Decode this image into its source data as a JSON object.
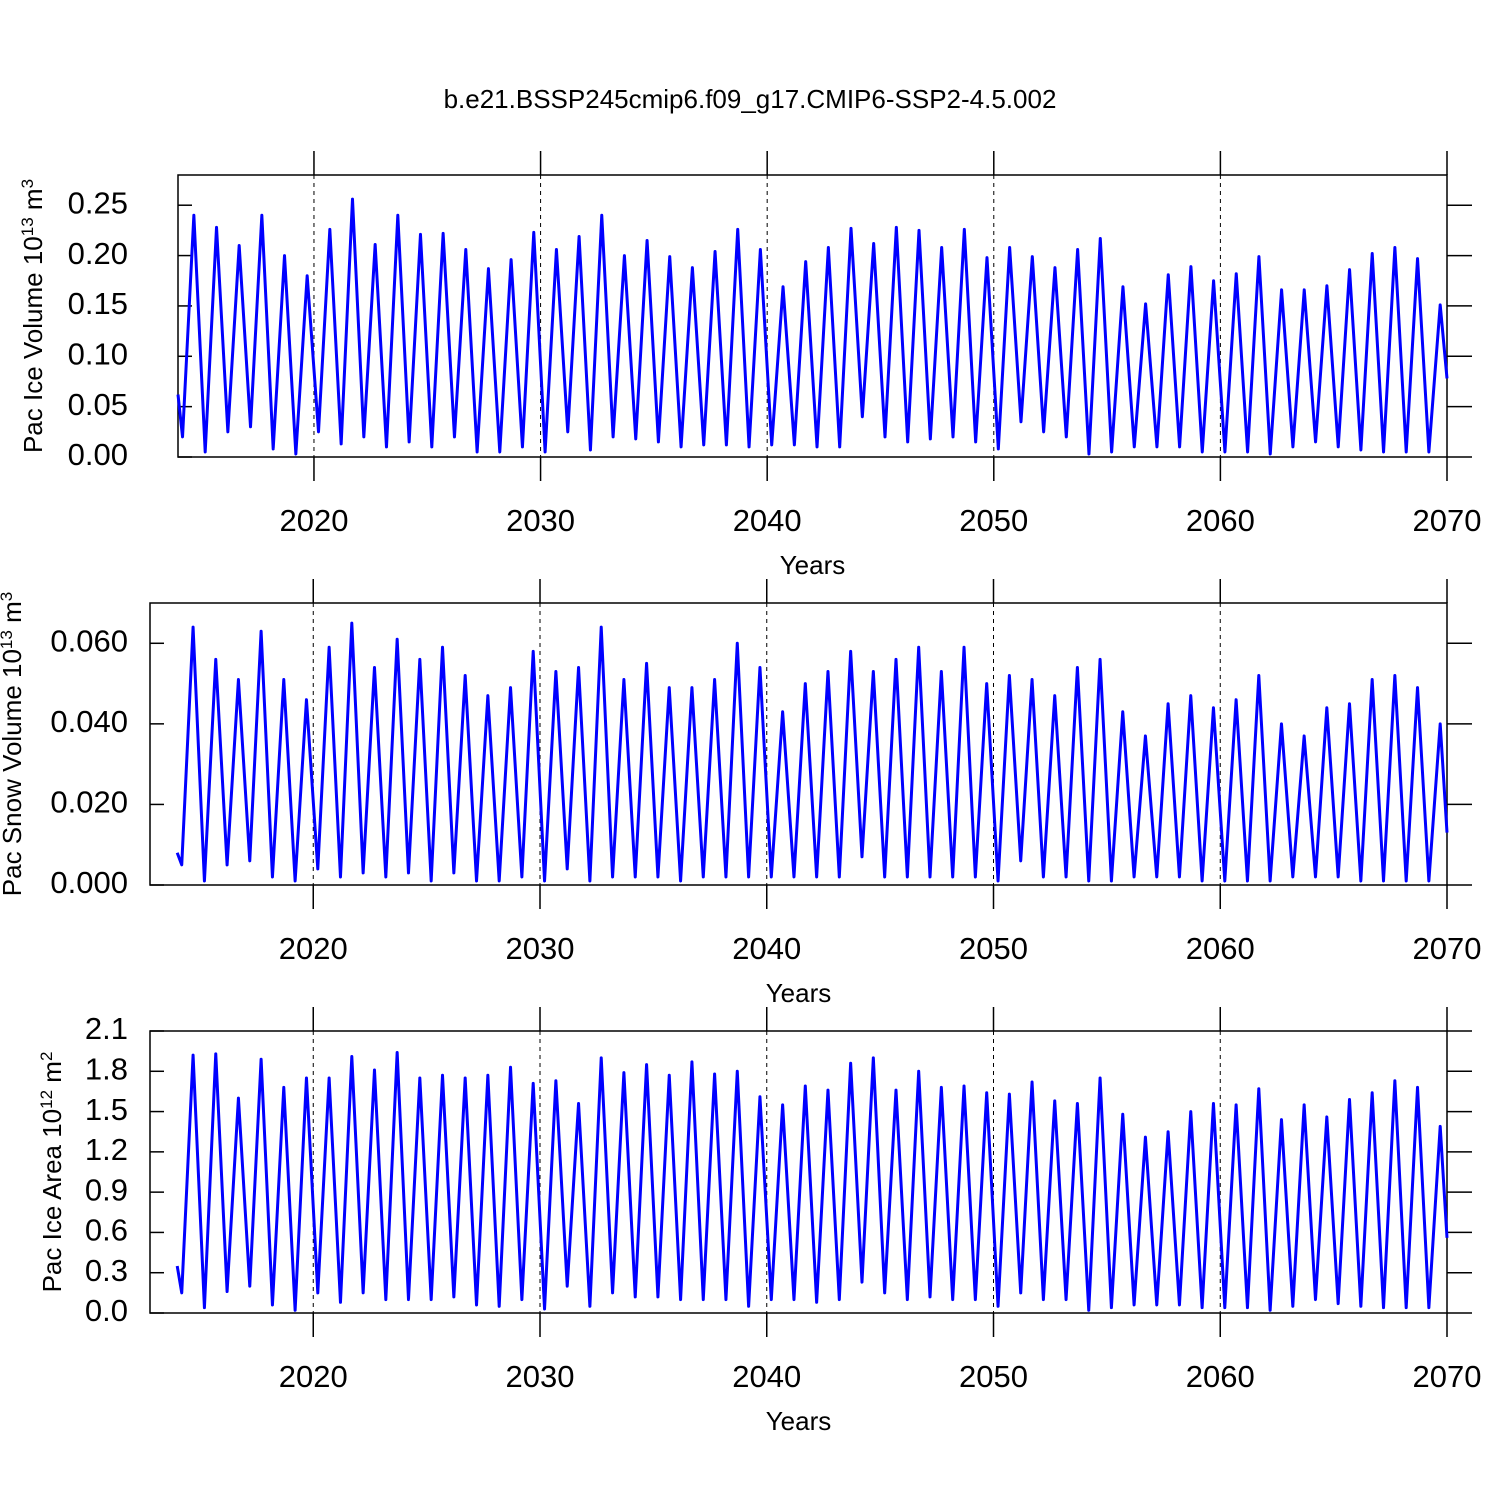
{
  "chart_data": [
    {
      "type": "line",
      "title": "b.e21.BSSP245cmip6.f09_g17.CMIP6-SSP2-4.5.002",
      "xlabel": "Years",
      "ylabel": [
        "Pac Ice Volume 10",
        "13",
        " m",
        "3"
      ],
      "xlim": [
        2014,
        2070
      ],
      "ylim": [
        0,
        0.28
      ],
      "grid": true,
      "xticks": [
        2020,
        2030,
        2040,
        2050,
        2060,
        2070
      ],
      "yticks": [
        {
          "value": 0,
          "label": "0.00"
        },
        {
          "value": 0.05,
          "label": "0.05"
        },
        {
          "value": 0.1,
          "label": "0.10"
        },
        {
          "value": 0.15,
          "label": "0.15"
        },
        {
          "value": 0.2,
          "label": "0.20"
        },
        {
          "value": 0.25,
          "label": "0.25"
        }
      ],
      "x": [
        2014,
        2014.2,
        2014.7,
        2015.2,
        2015.7,
        2016.2,
        2016.7,
        2017.2,
        2017.7,
        2018.2,
        2018.7,
        2019.2,
        2019.7,
        2020.2,
        2020.7,
        2021.2,
        2021.7,
        2022.2,
        2022.7,
        2023.2,
        2023.7,
        2024.2,
        2024.7,
        2025.2,
        2025.7,
        2026.2,
        2026.7,
        2027.2,
        2027.7,
        2028.2,
        2028.7,
        2029.2,
        2029.7,
        2030.2,
        2030.7,
        2031.2,
        2031.7,
        2032.2,
        2032.7,
        2033.2,
        2033.7,
        2034.2,
        2034.7,
        2035.2,
        2035.7,
        2036.2,
        2036.7,
        2037.2,
        2037.7,
        2038.2,
        2038.7,
        2039.2,
        2039.7,
        2040.2,
        2040.7,
        2041.2,
        2041.7,
        2042.2,
        2042.7,
        2043.2,
        2043.7,
        2044.2,
        2044.7,
        2045.2,
        2045.7,
        2046.2,
        2046.7,
        2047.2,
        2047.7,
        2048.2,
        2048.7,
        2049.2,
        2049.7,
        2050.2,
        2050.7,
        2051.2,
        2051.7,
        2052.2,
        2052.7,
        2053.2,
        2053.7,
        2054.2,
        2054.7,
        2055.2,
        2055.7,
        2056.2,
        2056.7,
        2057.2,
        2057.7,
        2058.2,
        2058.7,
        2059.2,
        2059.7,
        2060.2,
        2060.7,
        2061.2,
        2061.7,
        2062.2,
        2062.7,
        2063.2,
        2063.7,
        2064.2,
        2064.7,
        2065.2,
        2065.7,
        2066.2,
        2066.7,
        2067.2,
        2067.7,
        2068.2,
        2068.7,
        2069.2,
        2069.7,
        2070
      ],
      "series": [
        {
          "color": "#0000ff",
          "values": [
            0.062,
            0.02,
            0.24,
            0.005,
            0.228,
            0.025,
            0.21,
            0.03,
            0.24,
            0.008,
            0.2,
            0.003,
            0.18,
            0.025,
            0.226,
            0.013,
            0.256,
            0.02,
            0.211,
            0.01,
            0.24,
            0.015,
            0.221,
            0.01,
            0.222,
            0.02,
            0.206,
            0.005,
            0.187,
            0.005,
            0.196,
            0.01,
            0.223,
            0.005,
            0.206,
            0.025,
            0.219,
            0.007,
            0.24,
            0.02,
            0.2,
            0.018,
            0.215,
            0.015,
            0.199,
            0.01,
            0.188,
            0.012,
            0.204,
            0.012,
            0.226,
            0.01,
            0.206,
            0.012,
            0.169,
            0.012,
            0.194,
            0.01,
            0.208,
            0.01,
            0.227,
            0.04,
            0.212,
            0.02,
            0.228,
            0.015,
            0.225,
            0.018,
            0.208,
            0.02,
            0.226,
            0.015,
            0.198,
            0.008,
            0.208,
            0.035,
            0.199,
            0.025,
            0.188,
            0.02,
            0.206,
            0.003,
            0.217,
            0.005,
            0.169,
            0.01,
            0.152,
            0.01,
            0.181,
            0.01,
            0.189,
            0.005,
            0.175,
            0.005,
            0.182,
            0.005,
            0.199,
            0.003,
            0.166,
            0.01,
            0.166,
            0.015,
            0.17,
            0.01,
            0.186,
            0.007,
            0.202,
            0.005,
            0.208,
            0.005,
            0.197,
            0.005,
            0.151,
            0.078
          ]
        }
      ]
    },
    {
      "type": "line",
      "xlabel": "Years",
      "ylabel": [
        "Pac Snow Volume 10",
        "13",
        " m",
        "3"
      ],
      "xlim": [
        2012.8,
        2070
      ],
      "ylim": [
        0,
        0.07
      ],
      "grid": true,
      "xticks": [
        2020,
        2030,
        2040,
        2050,
        2060,
        2070
      ],
      "yticks": [
        {
          "value": 0,
          "label": "0.000"
        },
        {
          "value": 0.02,
          "label": "0.020"
        },
        {
          "value": 0.04,
          "label": "0.040"
        },
        {
          "value": 0.06,
          "label": "0.060"
        }
      ],
      "x": [
        2014,
        2014.2,
        2014.7,
        2015.2,
        2015.7,
        2016.2,
        2016.7,
        2017.2,
        2017.7,
        2018.2,
        2018.7,
        2019.2,
        2019.7,
        2020.2,
        2020.7,
        2021.2,
        2021.7,
        2022.2,
        2022.7,
        2023.2,
        2023.7,
        2024.2,
        2024.7,
        2025.2,
        2025.7,
        2026.2,
        2026.7,
        2027.2,
        2027.7,
        2028.2,
        2028.7,
        2029.2,
        2029.7,
        2030.2,
        2030.7,
        2031.2,
        2031.7,
        2032.2,
        2032.7,
        2033.2,
        2033.7,
        2034.2,
        2034.7,
        2035.2,
        2035.7,
        2036.2,
        2036.7,
        2037.2,
        2037.7,
        2038.2,
        2038.7,
        2039.2,
        2039.7,
        2040.2,
        2040.7,
        2041.2,
        2041.7,
        2042.2,
        2042.7,
        2043.2,
        2043.7,
        2044.2,
        2044.7,
        2045.2,
        2045.7,
        2046.2,
        2046.7,
        2047.2,
        2047.7,
        2048.2,
        2048.7,
        2049.2,
        2049.7,
        2050.2,
        2050.7,
        2051.2,
        2051.7,
        2052.2,
        2052.7,
        2053.2,
        2053.7,
        2054.2,
        2054.7,
        2055.2,
        2055.7,
        2056.2,
        2056.7,
        2057.2,
        2057.7,
        2058.2,
        2058.7,
        2059.2,
        2059.7,
        2060.2,
        2060.7,
        2061.2,
        2061.7,
        2062.2,
        2062.7,
        2063.2,
        2063.7,
        2064.2,
        2064.7,
        2065.2,
        2065.7,
        2066.2,
        2066.7,
        2067.2,
        2067.7,
        2068.2,
        2068.7,
        2069.2,
        2069.7,
        2070
      ],
      "series": [
        {
          "color": "#0000ff",
          "values": [
            0.008,
            0.005,
            0.064,
            0.001,
            0.056,
            0.005,
            0.051,
            0.006,
            0.063,
            0.002,
            0.051,
            0.001,
            0.046,
            0.004,
            0.059,
            0.002,
            0.065,
            0.003,
            0.054,
            0.002,
            0.061,
            0.003,
            0.056,
            0.001,
            0.059,
            0.003,
            0.052,
            0.001,
            0.047,
            0.001,
            0.049,
            0.002,
            0.058,
            0.001,
            0.053,
            0.004,
            0.054,
            0.001,
            0.064,
            0.002,
            0.051,
            0.002,
            0.055,
            0.002,
            0.049,
            0.001,
            0.049,
            0.002,
            0.051,
            0.002,
            0.06,
            0.002,
            0.054,
            0.002,
            0.043,
            0.002,
            0.05,
            0.002,
            0.053,
            0.002,
            0.058,
            0.007,
            0.053,
            0.002,
            0.056,
            0.002,
            0.059,
            0.002,
            0.053,
            0.002,
            0.059,
            0.002,
            0.05,
            0.001,
            0.052,
            0.006,
            0.051,
            0.002,
            0.047,
            0.002,
            0.054,
            0.001,
            0.056,
            0.001,
            0.043,
            0.002,
            0.037,
            0.002,
            0.045,
            0.002,
            0.047,
            0.001,
            0.044,
            0.001,
            0.046,
            0.001,
            0.052,
            0.001,
            0.04,
            0.002,
            0.037,
            0.002,
            0.044,
            0.002,
            0.045,
            0.001,
            0.051,
            0.001,
            0.052,
            0.001,
            0.049,
            0.001,
            0.04,
            0.013
          ]
        }
      ]
    },
    {
      "type": "line",
      "xlabel": "Years",
      "ylabel": [
        "Pac Ice Area 10",
        "12",
        " m",
        "2"
      ],
      "xlim": [
        2012.8,
        2070
      ],
      "ylim": [
        0,
        2.1
      ],
      "grid": true,
      "xticks": [
        2020,
        2030,
        2040,
        2050,
        2060,
        2070
      ],
      "yticks": [
        {
          "value": 0,
          "label": "0.0"
        },
        0.3,
        0.6,
        0.9,
        1.2,
        1.5,
        1.8,
        2.1
      ],
      "x": [
        2014,
        2014.2,
        2014.7,
        2015.2,
        2015.7,
        2016.2,
        2016.7,
        2017.2,
        2017.7,
        2018.2,
        2018.7,
        2019.2,
        2019.7,
        2020.2,
        2020.7,
        2021.2,
        2021.7,
        2022.2,
        2022.7,
        2023.2,
        2023.7,
        2024.2,
        2024.7,
        2025.2,
        2025.7,
        2026.2,
        2026.7,
        2027.2,
        2027.7,
        2028.2,
        2028.7,
        2029.2,
        2029.7,
        2030.2,
        2030.7,
        2031.2,
        2031.7,
        2032.2,
        2032.7,
        2033.2,
        2033.7,
        2034.2,
        2034.7,
        2035.2,
        2035.7,
        2036.2,
        2036.7,
        2037.2,
        2037.7,
        2038.2,
        2038.7,
        2039.2,
        2039.7,
        2040.2,
        2040.7,
        2041.2,
        2041.7,
        2042.2,
        2042.7,
        2043.2,
        2043.7,
        2044.2,
        2044.7,
        2045.2,
        2045.7,
        2046.2,
        2046.7,
        2047.2,
        2047.7,
        2048.2,
        2048.7,
        2049.2,
        2049.7,
        2050.2,
        2050.7,
        2051.2,
        2051.7,
        2052.2,
        2052.7,
        2053.2,
        2053.7,
        2054.2,
        2054.7,
        2055.2,
        2055.7,
        2056.2,
        2056.7,
        2057.2,
        2057.7,
        2058.2,
        2058.7,
        2059.2,
        2059.7,
        2060.2,
        2060.7,
        2061.2,
        2061.7,
        2062.2,
        2062.7,
        2063.2,
        2063.7,
        2064.2,
        2064.7,
        2065.2,
        2065.7,
        2066.2,
        2066.7,
        2067.2,
        2067.7,
        2068.2,
        2068.7,
        2069.2,
        2069.7,
        2070
      ],
      "series": [
        {
          "color": "#0000ff",
          "values": [
            0.35,
            0.15,
            1.92,
            0.04,
            1.93,
            0.16,
            1.6,
            0.2,
            1.89,
            0.06,
            1.68,
            0.02,
            1.75,
            0.15,
            1.75,
            0.08,
            1.91,
            0.15,
            1.81,
            0.1,
            1.94,
            0.1,
            1.75,
            0.1,
            1.77,
            0.12,
            1.75,
            0.06,
            1.77,
            0.05,
            1.83,
            0.1,
            1.71,
            0.03,
            1.73,
            0.2,
            1.56,
            0.05,
            1.9,
            0.15,
            1.79,
            0.12,
            1.85,
            0.12,
            1.77,
            0.1,
            1.87,
            0.1,
            1.78,
            0.1,
            1.8,
            0.05,
            1.61,
            0.1,
            1.55,
            0.1,
            1.69,
            0.08,
            1.66,
            0.1,
            1.86,
            0.23,
            1.9,
            0.15,
            1.66,
            0.1,
            1.8,
            0.12,
            1.68,
            0.1,
            1.69,
            0.1,
            1.64,
            0.05,
            1.63,
            0.15,
            1.72,
            0.1,
            1.58,
            0.1,
            1.56,
            0.02,
            1.75,
            0.04,
            1.48,
            0.06,
            1.31,
            0.06,
            1.35,
            0.06,
            1.5,
            0.04,
            1.56,
            0.04,
            1.55,
            0.04,
            1.67,
            0.02,
            1.44,
            0.05,
            1.55,
            0.1,
            1.46,
            0.07,
            1.59,
            0.05,
            1.64,
            0.04,
            1.73,
            0.04,
            1.68,
            0.04,
            1.39,
            0.56
          ]
        }
      ]
    }
  ]
}
